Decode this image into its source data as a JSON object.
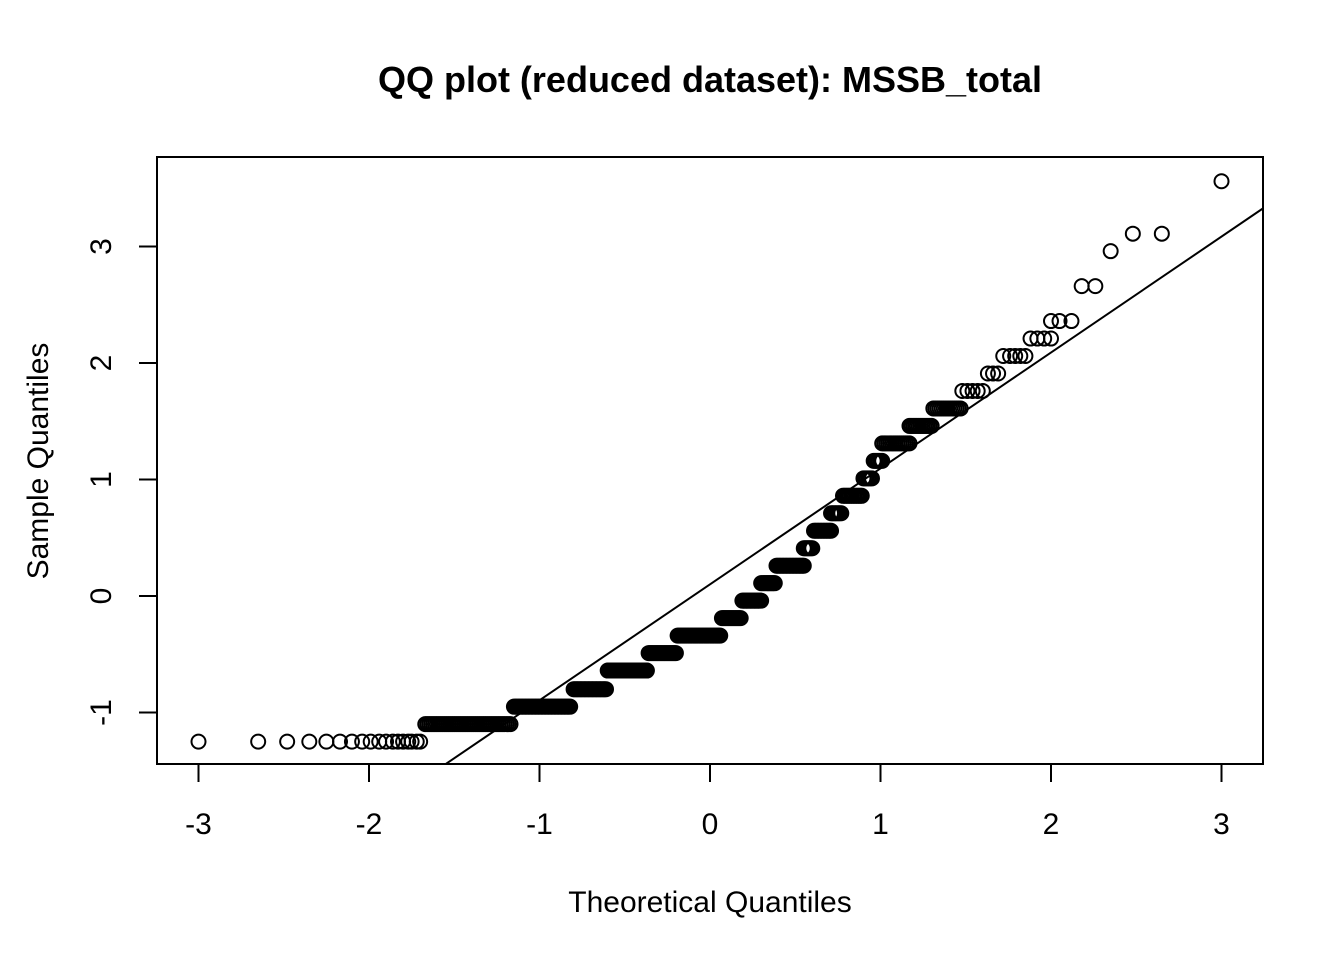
{
  "chart_data": {
    "type": "scatter",
    "title": "QQ plot (reduced dataset): MSSB_total",
    "xlabel": "Theoretical Quantiles",
    "ylabel": "Sample Quantiles",
    "xlim": [
      -3.25,
      3.25
    ],
    "ylim": [
      -1.45,
      3.8
    ],
    "xticks": [
      -3,
      -2,
      -1,
      0,
      1,
      2,
      3
    ],
    "xtick_labels": [
      "-3",
      "-2",
      "-1",
      "0",
      "1",
      "2",
      "3"
    ],
    "yticks": [
      -1,
      0,
      1,
      2,
      3
    ],
    "ytick_labels": [
      "-1",
      "0",
      "1",
      "2",
      "3"
    ],
    "grid": false,
    "marker": "open-circle",
    "reference_line": {
      "intercept": 0.1,
      "slope": 0.995
    },
    "point_groups": [
      {
        "y": -1.25,
        "x": [
          -3.0,
          -2.65,
          -2.48,
          -2.35,
          -2.25,
          -2.17,
          -2.1,
          -2.04,
          -1.99,
          -1.94,
          -1.9,
          -1.86,
          -1.83,
          -1.8,
          -1.77,
          -1.75,
          -1.72,
          -1.7
        ]
      },
      {
        "y": -1.1,
        "x_range": [
          -1.67,
          -1.17
        ],
        "n": 45
      },
      {
        "y": -0.95,
        "x_range": [
          -1.15,
          -0.82
        ],
        "n": 40
      },
      {
        "y": -0.8,
        "x_range": [
          -0.8,
          -0.61
        ],
        "n": 25
      },
      {
        "y": -0.64,
        "x_range": [
          -0.6,
          -0.37
        ],
        "n": 30
      },
      {
        "y": -0.49,
        "x_range": [
          -0.36,
          -0.2
        ],
        "n": 22
      },
      {
        "y": -0.34,
        "x_range": [
          -0.19,
          0.06
        ],
        "n": 32
      },
      {
        "y": -0.19,
        "x_range": [
          0.07,
          0.18
        ],
        "n": 15
      },
      {
        "y": -0.04,
        "x_range": [
          0.19,
          0.3
        ],
        "n": 15
      },
      {
        "y": 0.11,
        "x_range": [
          0.3,
          0.38
        ],
        "n": 12
      },
      {
        "y": 0.26,
        "x_range": [
          0.39,
          0.55
        ],
        "n": 20
      },
      {
        "y": 0.41,
        "x_range": [
          0.55,
          0.6
        ],
        "n": 8
      },
      {
        "y": 0.56,
        "x_range": [
          0.61,
          0.71
        ],
        "n": 12
      },
      {
        "y": 0.71,
        "x_range": [
          0.71,
          0.77
        ],
        "n": 8
      },
      {
        "y": 0.86,
        "x_range": [
          0.78,
          0.89
        ],
        "n": 12
      },
      {
        "y": 1.01,
        "x_range": [
          0.9,
          0.95
        ],
        "n": 6
      },
      {
        "y": 1.16,
        "x_range": [
          0.96,
          1.01
        ],
        "n": 6
      },
      {
        "y": 1.31,
        "x_range": [
          1.01,
          1.17
        ],
        "n": 15
      },
      {
        "y": 1.46,
        "x_range": [
          1.17,
          1.3
        ],
        "n": 13
      },
      {
        "y": 1.61,
        "x_range": [
          1.31,
          1.47
        ],
        "n": 14
      },
      {
        "y": 1.76,
        "x": [
          1.48,
          1.51,
          1.54,
          1.57,
          1.6
        ]
      },
      {
        "y": 1.91,
        "x": [
          1.63,
          1.66,
          1.69
        ]
      },
      {
        "y": 2.06,
        "x": [
          1.72,
          1.76,
          1.79,
          1.82,
          1.85
        ]
      },
      {
        "y": 2.21,
        "x": [
          1.88,
          1.92,
          1.96,
          2.0
        ]
      },
      {
        "y": 2.36,
        "x": [
          2.0,
          2.05,
          2.12
        ]
      },
      {
        "y": 2.66,
        "x": [
          2.18,
          2.26
        ]
      },
      {
        "y": 2.96,
        "x": [
          2.35
        ]
      },
      {
        "y": 3.11,
        "x": [
          2.48,
          2.65
        ]
      },
      {
        "y": 3.56,
        "x": [
          3.0
        ]
      }
    ]
  }
}
